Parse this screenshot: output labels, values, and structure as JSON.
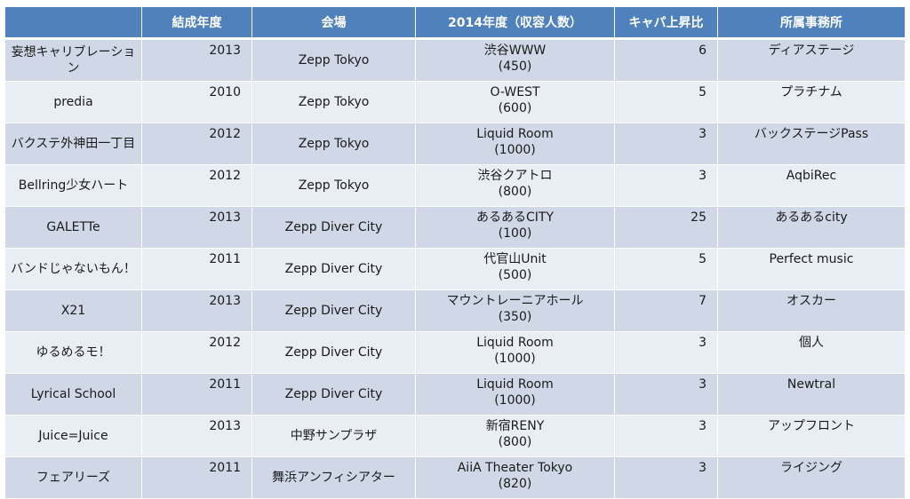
{
  "columns": [
    "",
    "結成年度",
    "会場",
    "2014年度（収容人数）",
    "キャパ上昇比",
    "所属事務所"
  ],
  "rows": [
    {
      "name": "妄想キャリブレーション",
      "year": "2013",
      "venue": "Zepp Tokyo",
      "venue2014": "渋谷WWW",
      "capacity": "(450)",
      "ratio": "6",
      "agency": "ディアステージ"
    },
    {
      "name": "predia",
      "year": "2010",
      "venue": "Zepp Tokyo",
      "venue2014": "O-WEST",
      "capacity": "(600)",
      "ratio": "5",
      "agency": "プラチナム"
    },
    {
      "name": "バクステ外神田一丁目",
      "year": "2012",
      "venue": "Zepp Tokyo",
      "venue2014": "Liquid Room",
      "capacity": "(1000)",
      "ratio": "3",
      "agency": "バックステージPass"
    },
    {
      "name": "Bellring少女ハート",
      "year": "2012",
      "venue": "Zepp Tokyo",
      "venue2014": "渋谷クアトロ",
      "capacity": "(800)",
      "ratio": "3",
      "agency": "AqbiRec"
    },
    {
      "name": "GALETTe",
      "year": "2013",
      "venue": "Zepp Diver City",
      "venue2014": "あるあるCITY",
      "capacity": "(100)",
      "ratio": "25",
      "agency": "あるあるcity"
    },
    {
      "name": "バンドじゃないもん！",
      "year": "2011",
      "venue": "Zepp Diver City",
      "venue2014": "代官山Unit",
      "capacity": "(500)",
      "ratio": "5",
      "agency": "Perfect music"
    },
    {
      "name": "X21",
      "year": "2013",
      "venue": "Zepp Diver City",
      "venue2014": "マウントレーニアホール",
      "capacity": "(350)",
      "ratio": "7",
      "agency": "オスカー"
    },
    {
      "name": "ゆるめるモ！",
      "year": "2012",
      "venue": "Zepp Diver City",
      "venue2014": "Liquid Room",
      "capacity": "(1000)",
      "ratio": "3",
      "agency": "個人"
    },
    {
      "name": "Lyrical School",
      "year": "2011",
      "venue": "Zepp Diver City",
      "venue2014": "Liquid Room",
      "capacity": "(1000)",
      "ratio": "3",
      "agency": "Newtral"
    },
    {
      "name": "Juice=Juice",
      "year": "2013",
      "venue": "中野サンプラザ",
      "venue2014": "新宿RENY",
      "capacity": "(800)",
      "ratio": "3",
      "agency": "アップフロント"
    },
    {
      "name": "フェアリーズ",
      "year": "2011",
      "venue": "舞浜アンフィシアター",
      "venue2014": "AiiA Theater Tokyo",
      "capacity": "(820)",
      "ratio": "3",
      "agency": "ライジング"
    }
  ]
}
